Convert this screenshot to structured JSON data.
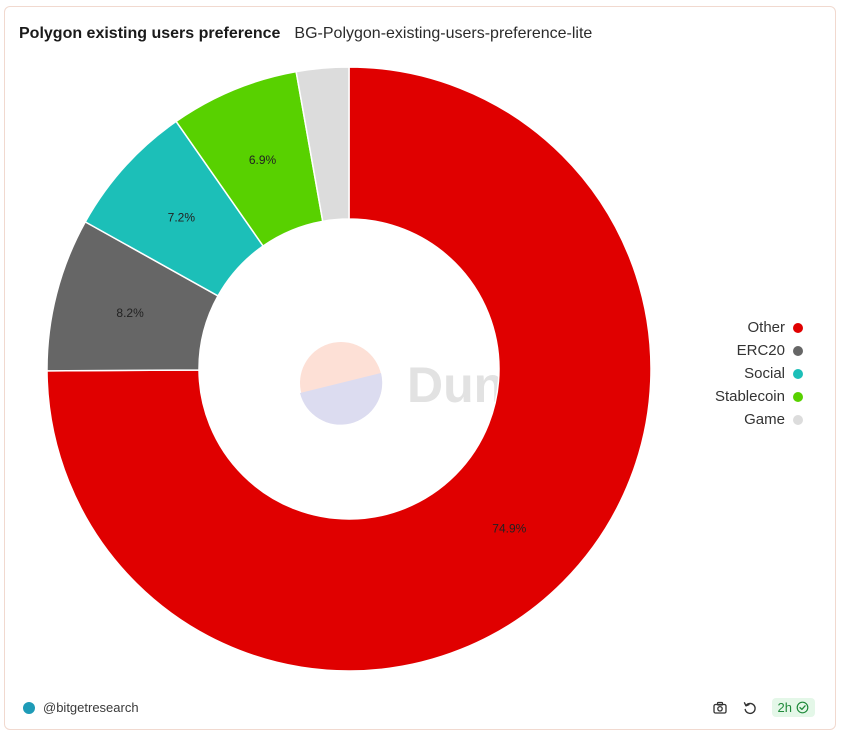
{
  "header": {
    "title": "Polygon existing users preference",
    "subtitle": "BG-Polygon-existing-users-preference-lite"
  },
  "chart_data": {
    "type": "pie",
    "title": "Polygon existing users preference",
    "subtitle": "BG-Polygon-existing-users-preference-lite",
    "donut": true,
    "categories": [
      "Other",
      "ERC20",
      "Social",
      "Stablecoin",
      "Game"
    ],
    "values": [
      74.9,
      8.2,
      7.2,
      6.9,
      2.8
    ],
    "labels": [
      "74.9%",
      "8.2%",
      "7.2%",
      "6.9%",
      ""
    ],
    "colors": [
      "#e00000",
      "#666666",
      "#1cbfb8",
      "#58d100",
      "#dcdcdc"
    ],
    "legend_position": "right",
    "watermark": "Dune"
  },
  "footer": {
    "author": "@bitgetresearch",
    "refresh_label": "2h",
    "icons": [
      "camera-icon",
      "refresh-icon",
      "check-circle-icon"
    ]
  }
}
